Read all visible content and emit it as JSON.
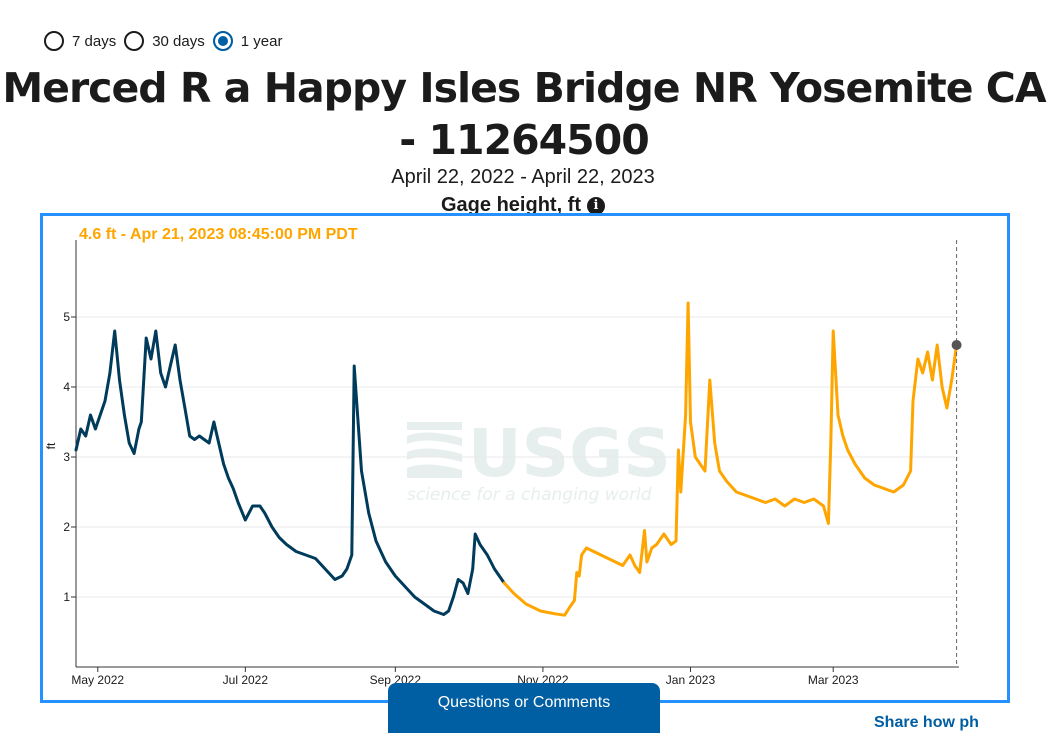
{
  "period_options": [
    {
      "label": "7 days",
      "selected": false
    },
    {
      "label": "30 days",
      "selected": false
    },
    {
      "label": "1 year",
      "selected": true
    }
  ],
  "site_title": "Merced R a Happy Isles Bridge NR Yosemite CA - 11264500",
  "date_range": "April 22, 2022 - April 22, 2023",
  "parameter_label": "Gage height, ft",
  "tooltip": "4.6 ft - Apr 21, 2023 08:45:00 PM PDT",
  "buttons": {
    "questions": "Questions or Comments",
    "share": "Share how ph"
  },
  "watermark": {
    "logo": "USGS",
    "tagline": "science for a changing world"
  },
  "colors": {
    "approved": "#003b5c",
    "provisional": "#ffa500",
    "accent": "#005ea2",
    "frame": "#2491ff"
  },
  "chart_data": {
    "type": "line",
    "ylabel": "ft",
    "ylim": [
      0,
      6.1
    ],
    "yticks": [
      1,
      2,
      3,
      4,
      5
    ],
    "ytick_labels": [
      "1",
      "2",
      "3",
      "4",
      "5"
    ],
    "xlim": [
      "2022-04-22",
      "2023-04-22"
    ],
    "xticks": [
      "2022-05-01",
      "2022-07-01",
      "2022-09-01",
      "2022-11-01",
      "2023-01-01",
      "2023-03-01"
    ],
    "xtick_labels": [
      "May 2022",
      "Jul 2022",
      "Sep 2022",
      "Nov 2022",
      "Jan 2023",
      "Mar 2023"
    ],
    "grid": true,
    "cursor_date": "2023-04-21",
    "cursor_value": 4.6,
    "series": [
      {
        "status": "approved",
        "points": [
          [
            "2022-04-22",
            3.1
          ],
          [
            "2022-04-24",
            3.4
          ],
          [
            "2022-04-26",
            3.3
          ],
          [
            "2022-04-28",
            3.6
          ],
          [
            "2022-04-30",
            3.4
          ],
          [
            "2022-05-02",
            3.6
          ],
          [
            "2022-05-04",
            3.8
          ],
          [
            "2022-05-06",
            4.2
          ],
          [
            "2022-05-08",
            4.8
          ],
          [
            "2022-05-10",
            4.1
          ],
          [
            "2022-05-12",
            3.6
          ],
          [
            "2022-05-14",
            3.2
          ],
          [
            "2022-05-16",
            3.05
          ],
          [
            "2022-05-18",
            3.4
          ],
          [
            "2022-05-19",
            3.5
          ],
          [
            "2022-05-21",
            4.7
          ],
          [
            "2022-05-23",
            4.4
          ],
          [
            "2022-05-25",
            4.8
          ],
          [
            "2022-05-27",
            4.2
          ],
          [
            "2022-05-29",
            4.0
          ],
          [
            "2022-05-31",
            4.3
          ],
          [
            "2022-06-02",
            4.6
          ],
          [
            "2022-06-04",
            4.1
          ],
          [
            "2022-06-06",
            3.7
          ],
          [
            "2022-06-08",
            3.3
          ],
          [
            "2022-06-10",
            3.25
          ],
          [
            "2022-06-12",
            3.3
          ],
          [
            "2022-06-14",
            3.25
          ],
          [
            "2022-06-16",
            3.2
          ],
          [
            "2022-06-18",
            3.5
          ],
          [
            "2022-06-20",
            3.2
          ],
          [
            "2022-06-22",
            2.9
          ],
          [
            "2022-06-24",
            2.7
          ],
          [
            "2022-06-26",
            2.55
          ],
          [
            "2022-06-28",
            2.35
          ],
          [
            "2022-07-01",
            2.1
          ],
          [
            "2022-07-04",
            2.3
          ],
          [
            "2022-07-07",
            2.3
          ],
          [
            "2022-07-09",
            2.2
          ],
          [
            "2022-07-12",
            2.0
          ],
          [
            "2022-07-15",
            1.85
          ],
          [
            "2022-07-18",
            1.75
          ],
          [
            "2022-07-22",
            1.65
          ],
          [
            "2022-07-26",
            1.6
          ],
          [
            "2022-07-30",
            1.55
          ],
          [
            "2022-08-03",
            1.4
          ],
          [
            "2022-08-07",
            1.25
          ],
          [
            "2022-08-10",
            1.3
          ],
          [
            "2022-08-12",
            1.4
          ],
          [
            "2022-08-14",
            1.6
          ],
          [
            "2022-08-15",
            4.3
          ],
          [
            "2022-08-16",
            3.8
          ],
          [
            "2022-08-18",
            2.8
          ],
          [
            "2022-08-21",
            2.2
          ],
          [
            "2022-08-24",
            1.8
          ],
          [
            "2022-08-28",
            1.5
          ],
          [
            "2022-09-01",
            1.3
          ],
          [
            "2022-09-05",
            1.15
          ],
          [
            "2022-09-09",
            1.0
          ],
          [
            "2022-09-13",
            0.9
          ],
          [
            "2022-09-17",
            0.8
          ],
          [
            "2022-09-21",
            0.75
          ],
          [
            "2022-09-23",
            0.8
          ],
          [
            "2022-09-25",
            1.0
          ],
          [
            "2022-09-27",
            1.25
          ],
          [
            "2022-09-29",
            1.2
          ],
          [
            "2022-10-01",
            1.05
          ],
          [
            "2022-10-03",
            1.4
          ],
          [
            "2022-10-04",
            1.9
          ],
          [
            "2022-10-06",
            1.75
          ],
          [
            "2022-10-09",
            1.6
          ],
          [
            "2022-10-12",
            1.4
          ],
          [
            "2022-10-16",
            1.2
          ]
        ]
      },
      {
        "status": "provisional",
        "points": [
          [
            "2022-10-16",
            1.2
          ],
          [
            "2022-10-20",
            1.05
          ],
          [
            "2022-10-25",
            0.9
          ],
          [
            "2022-10-31",
            0.8
          ],
          [
            "2022-11-06",
            0.76
          ],
          [
            "2022-11-10",
            0.74
          ],
          [
            "2022-11-12",
            0.85
          ],
          [
            "2022-11-14",
            0.95
          ],
          [
            "2022-11-15",
            1.35
          ],
          [
            "2022-11-16",
            1.3
          ],
          [
            "2022-11-17",
            1.6
          ],
          [
            "2022-11-19",
            1.7
          ],
          [
            "2022-11-22",
            1.65
          ],
          [
            "2022-11-25",
            1.6
          ],
          [
            "2022-11-28",
            1.55
          ],
          [
            "2022-12-01",
            1.5
          ],
          [
            "2022-12-04",
            1.45
          ],
          [
            "2022-12-07",
            1.6
          ],
          [
            "2022-12-09",
            1.45
          ],
          [
            "2022-12-11",
            1.35
          ],
          [
            "2022-12-13",
            1.95
          ],
          [
            "2022-12-14",
            1.5
          ],
          [
            "2022-12-16",
            1.7
          ],
          [
            "2022-12-18",
            1.75
          ],
          [
            "2022-12-21",
            1.9
          ],
          [
            "2022-12-24",
            1.75
          ],
          [
            "2022-12-26",
            1.8
          ],
          [
            "2022-12-27",
            3.1
          ],
          [
            "2022-12-28",
            2.5
          ],
          [
            "2022-12-30",
            3.6
          ],
          [
            "2022-12-31",
            5.2
          ],
          [
            "2023-01-01",
            3.5
          ],
          [
            "2023-01-03",
            3.0
          ],
          [
            "2023-01-05",
            2.9
          ],
          [
            "2023-01-07",
            2.8
          ],
          [
            "2023-01-09",
            4.1
          ],
          [
            "2023-01-11",
            3.2
          ],
          [
            "2023-01-13",
            2.8
          ],
          [
            "2023-01-16",
            2.65
          ],
          [
            "2023-01-20",
            2.5
          ],
          [
            "2023-01-24",
            2.45
          ],
          [
            "2023-01-28",
            2.4
          ],
          [
            "2023-02-01",
            2.35
          ],
          [
            "2023-02-05",
            2.4
          ],
          [
            "2023-02-09",
            2.3
          ],
          [
            "2023-02-13",
            2.4
          ],
          [
            "2023-02-17",
            2.35
          ],
          [
            "2023-02-21",
            2.4
          ],
          [
            "2023-02-25",
            2.3
          ],
          [
            "2023-02-27",
            2.05
          ],
          [
            "2023-02-28",
            3.2
          ],
          [
            "2023-03-01",
            4.8
          ],
          [
            "2023-03-03",
            3.6
          ],
          [
            "2023-03-05",
            3.3
          ],
          [
            "2023-03-07",
            3.1
          ],
          [
            "2023-03-10",
            2.9
          ],
          [
            "2023-03-14",
            2.7
          ],
          [
            "2023-03-18",
            2.6
          ],
          [
            "2023-03-22",
            2.55
          ],
          [
            "2023-03-26",
            2.5
          ],
          [
            "2023-03-30",
            2.6
          ],
          [
            "2023-04-02",
            2.8
          ],
          [
            "2023-04-03",
            3.8
          ],
          [
            "2023-04-05",
            4.4
          ],
          [
            "2023-04-07",
            4.2
          ],
          [
            "2023-04-09",
            4.5
          ],
          [
            "2023-04-11",
            4.1
          ],
          [
            "2023-04-13",
            4.6
          ],
          [
            "2023-04-15",
            4.0
          ],
          [
            "2023-04-17",
            3.7
          ],
          [
            "2023-04-19",
            4.1
          ],
          [
            "2023-04-21",
            4.6
          ]
        ]
      }
    ]
  }
}
